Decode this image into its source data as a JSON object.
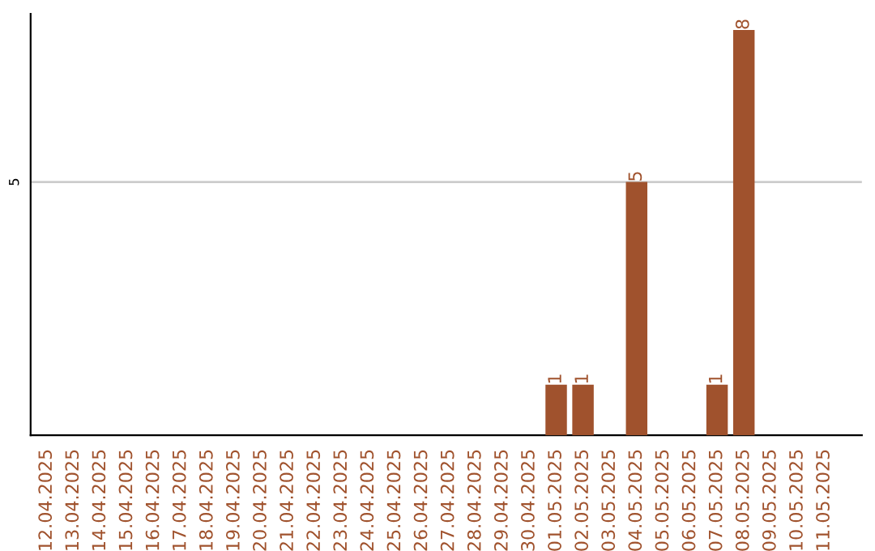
{
  "chart_data": {
    "type": "bar",
    "categories": [
      "12.04.2025",
      "13.04.2025",
      "14.04.2025",
      "15.04.2025",
      "16.04.2025",
      "17.04.2025",
      "18.04.2025",
      "19.04.2025",
      "20.04.2025",
      "21.04.2025",
      "22.04.2025",
      "23.04.2025",
      "24.04.2025",
      "25.04.2025",
      "26.04.2025",
      "27.04.2025",
      "28.04.2025",
      "29.04.2025",
      "30.04.2025",
      "01.05.2025",
      "02.05.2025",
      "03.05.2025",
      "04.05.2025",
      "05.05.2025",
      "06.05.2025",
      "07.05.2025",
      "08.05.2025",
      "09.05.2025",
      "10.05.2025",
      "11.05.2025"
    ],
    "values": [
      null,
      null,
      null,
      null,
      null,
      null,
      null,
      null,
      null,
      null,
      null,
      null,
      null,
      null,
      null,
      null,
      null,
      null,
      null,
      1,
      1,
      null,
      5,
      null,
      null,
      1,
      8,
      null,
      null,
      null
    ],
    "data_labels": true,
    "color": "#a0522d",
    "ref_lines": [
      {
        "axis": "y",
        "value": 5,
        "label": "5",
        "color": "#cccccc"
      }
    ],
    "legend": false
  }
}
